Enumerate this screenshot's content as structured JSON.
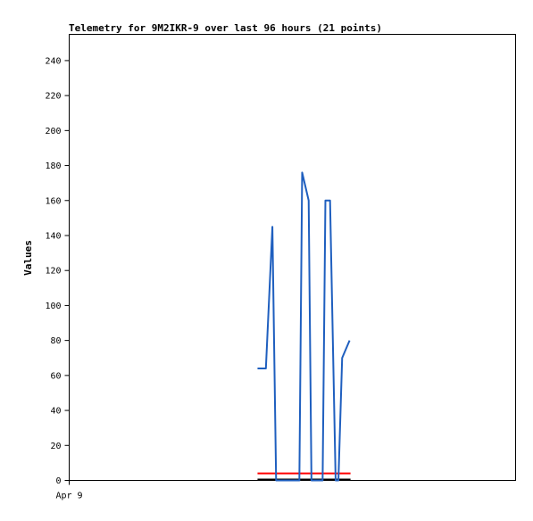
{
  "chart_data": {
    "type": "line",
    "title": "Telemetry for 9M2IKR-9 over last 96 hours (21 points)",
    "ylabel": "Values",
    "xlabel": "",
    "x_tick_labels": [
      "Apr 9"
    ],
    "x_range_hours": [
      0,
      96
    ],
    "ylim": [
      0,
      255
    ],
    "y_ticks": [
      0,
      20,
      40,
      60,
      80,
      100,
      120,
      140,
      160,
      180,
      200,
      220,
      240
    ],
    "grid": false,
    "legend": "none",
    "series": [
      {
        "color": "#1f5fbf",
        "x": [
          40.5,
          42.3,
          43.7,
          44.5,
          44.9,
          49.5,
          50.1,
          51.5,
          52.1,
          52.9,
          54.5,
          55.1,
          56.1,
          57.3,
          57.9,
          58.7,
          60.3
        ],
        "values": [
          64,
          64,
          145,
          0,
          0,
          0,
          176,
          160,
          0,
          0,
          0,
          160,
          160,
          0,
          0,
          70,
          80
        ]
      },
      {
        "color": "#ff0000",
        "x": [
          40.5,
          60.5
        ],
        "values": [
          4,
          4
        ]
      },
      {
        "color": "#000000",
        "x": [
          40.5,
          60.5
        ],
        "values": [
          0.5,
          0.5
        ]
      }
    ],
    "colors": {
      "primary": "#1f5fbf",
      "threshold": "#ff0000",
      "baseline": "#000000"
    }
  }
}
